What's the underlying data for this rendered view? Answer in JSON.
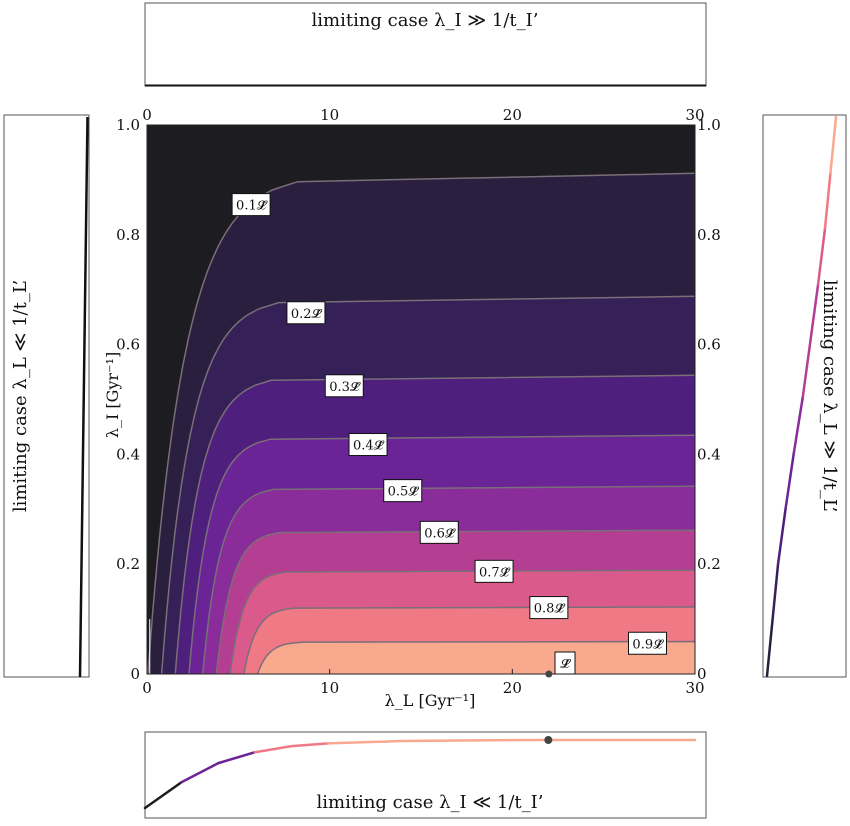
{
  "chart_data": [
    {
      "type": "heatmap",
      "title": "",
      "xlabel": "λ_L [Gyr⁻¹]",
      "ylabel": "λ_I [Gyr⁻¹]",
      "xlim": [
        0,
        30
      ],
      "ylim": [
        0,
        1.0
      ],
      "x_ticks": [
        "0",
        "10",
        "20",
        "30"
      ],
      "y_ticks": [
        "0",
        "0.2",
        "0.4",
        "0.6",
        "0.8",
        "1.0"
      ],
      "colormap": "magma",
      "contour_levels": [
        0.1,
        0.2,
        0.3,
        0.4,
        0.5,
        0.6,
        0.7,
        0.8,
        0.9
      ],
      "contour_labels": [
        "0.1𝓛̂",
        "0.2𝓛̂",
        "0.3𝓛̂",
        "0.4𝓛̂",
        "0.5𝓛̂",
        "0.6𝓛̂",
        "0.7𝓛̂",
        "0.8𝓛̂",
        "0.9𝓛̂"
      ],
      "contour_plateau_y": [
        0.912,
        0.688,
        0.544,
        0.435,
        0.342,
        0.262,
        0.189,
        0.122,
        0.059
      ],
      "maximum_label": "𝓛̂",
      "maximum_point": {
        "x": 22,
        "y": 0
      }
    },
    {
      "type": "line",
      "title": "limiting case λ_I ≫ 1/t_I’",
      "description_panel": "top",
      "x": [
        0,
        30
      ],
      "y": [
        0.5,
        0.5
      ]
    },
    {
      "type": "line",
      "title": "limiting case λ_I ≪ 1/t_I’",
      "description_panel": "bottom",
      "x": [
        0,
        2,
        4,
        6,
        8,
        10,
        14,
        18,
        22,
        26,
        30
      ],
      "y": [
        0.0,
        0.38,
        0.66,
        0.82,
        0.91,
        0.95,
        0.985,
        0.995,
        1.0,
        1.0,
        1.0
      ],
      "marker": {
        "x": 22,
        "y": 1.0
      }
    },
    {
      "type": "line",
      "title": "limiting case λ_L ≪ 1/t_L’",
      "description_panel": "left",
      "y_range": [
        0,
        1.0
      ],
      "x_small": [
        0.0,
        0.25,
        0.5,
        0.75,
        1.0
      ]
    },
    {
      "type": "line",
      "title": "limiting case λ_L ≫ 1/t_L’",
      "description_panel": "right",
      "y": [
        0.0,
        0.1,
        0.2,
        0.3,
        0.4,
        0.5,
        0.6,
        0.7,
        0.8,
        0.9,
        1.0
      ],
      "x": [
        0.0,
        0.08,
        0.16,
        0.27,
        0.39,
        0.52,
        0.63,
        0.74,
        0.84,
        0.92,
        1.0
      ]
    }
  ]
}
